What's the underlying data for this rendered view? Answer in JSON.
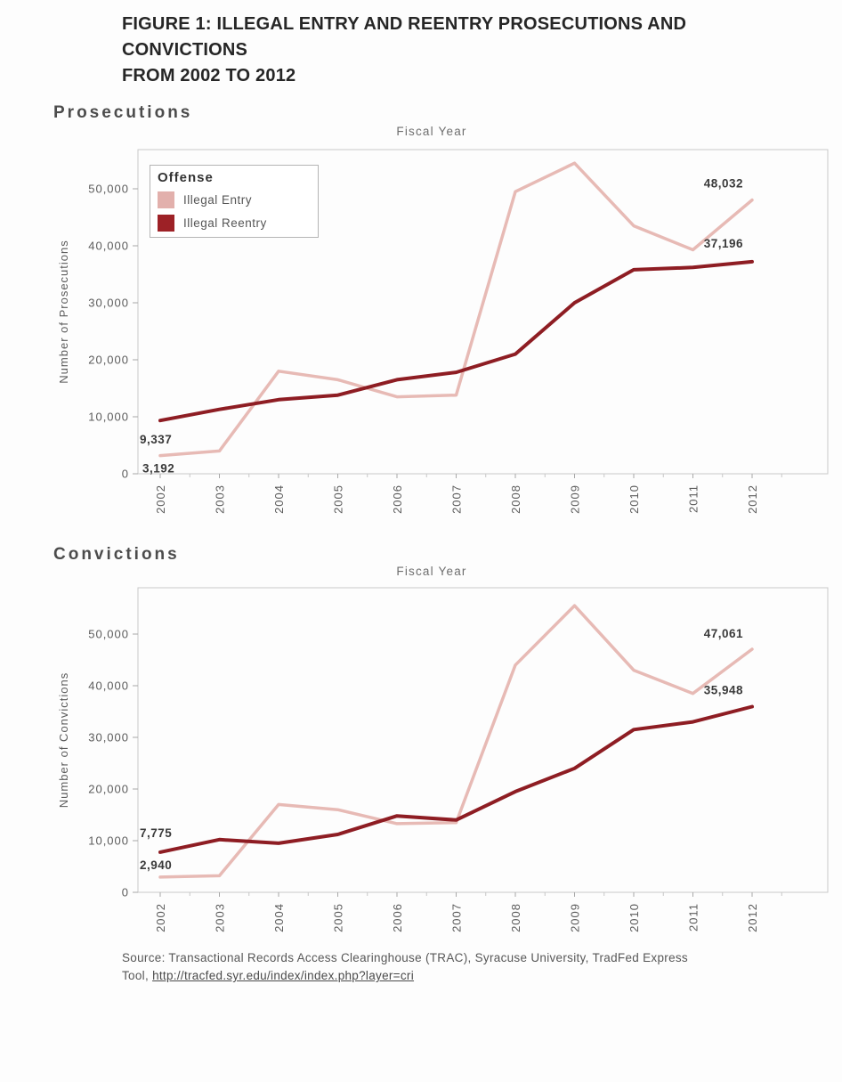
{
  "figure": {
    "title_line1": "FIGURE 1: ILLEGAL ENTRY AND REENTRY PROSECUTIONS AND CONVICTIONS",
    "title_line2": "FROM 2002 TO 2012"
  },
  "legend": {
    "title": "Offense",
    "items": [
      {
        "label": "Illegal Entry",
        "color": "#e2b0ac"
      },
      {
        "label": "Illegal Reentry",
        "color": "#9d2126"
      }
    ]
  },
  "chart_data": [
    {
      "type": "line",
      "title": "Prosecutions",
      "top_axis_label": "Fiscal Year",
      "ylabel": "Number of Prosecutions",
      "grid": false,
      "legend_position": "top-left",
      "x": [
        2002,
        2003,
        2004,
        2005,
        2006,
        2007,
        2008,
        2009,
        2010,
        2011,
        2012
      ],
      "ylim": [
        0,
        57000
      ],
      "yticks": [
        0,
        10000,
        20000,
        30000,
        40000,
        50000
      ],
      "ytick_labels": [
        "0",
        "10,000",
        "20,000",
        "30,000",
        "40,000",
        "50,000"
      ],
      "series": [
        {
          "name": "Illegal Entry",
          "color": "#e7bab5",
          "values": [
            3192,
            4000,
            18000,
            16500,
            13500,
            13800,
            49500,
            54500,
            43500,
            39300,
            48032
          ]
        },
        {
          "name": "Illegal Reentry",
          "color": "#8e1d23",
          "values": [
            9337,
            11300,
            13000,
            13800,
            16500,
            17800,
            21000,
            30000,
            35800,
            36200,
            37196
          ]
        }
      ],
      "annotations": [
        {
          "label": "9,337",
          "series": 1,
          "year": 2002
        },
        {
          "label": "3,192",
          "series": 0,
          "year": 2002
        },
        {
          "label": "48,032",
          "series": 0,
          "year": 2012
        },
        {
          "label": "37,196",
          "series": 1,
          "year": 2012
        }
      ]
    },
    {
      "type": "line",
      "title": "Convictions",
      "top_axis_label": "Fiscal Year",
      "ylabel": "Number of Convictions",
      "grid": false,
      "legend_position": "none",
      "x": [
        2002,
        2003,
        2004,
        2005,
        2006,
        2007,
        2008,
        2009,
        2010,
        2011,
        2012
      ],
      "ylim": [
        0,
        59000
      ],
      "yticks": [
        0,
        10000,
        20000,
        30000,
        40000,
        50000
      ],
      "ytick_labels": [
        "0",
        "10,000",
        "20,000",
        "30,000",
        "40,000",
        "50,000"
      ],
      "series": [
        {
          "name": "Illegal Entry",
          "color": "#e7bab5",
          "values": [
            2940,
            3200,
            17000,
            16000,
            13300,
            13500,
            44000,
            55500,
            43000,
            38500,
            47061
          ]
        },
        {
          "name": "Illegal Reentry",
          "color": "#8e1d23",
          "values": [
            7775,
            10200,
            9500,
            11200,
            14800,
            14000,
            19500,
            24000,
            31500,
            33000,
            35948
          ]
        }
      ],
      "annotations": [
        {
          "label": "7,775",
          "series": 1,
          "year": 2002
        },
        {
          "label": "2,940",
          "series": 0,
          "year": 2002
        },
        {
          "label": "47,061",
          "series": 0,
          "year": 2012
        },
        {
          "label": "35,948",
          "series": 1,
          "year": 2012
        }
      ]
    }
  ],
  "source": {
    "line1": "Source: Transactional Records Access Clearinghouse (TRAC), Syracuse University, TradFed Express",
    "line2_prefix": "Tool, ",
    "link": "http://tracfed.syr.edu/index/index.php?layer=cri"
  }
}
